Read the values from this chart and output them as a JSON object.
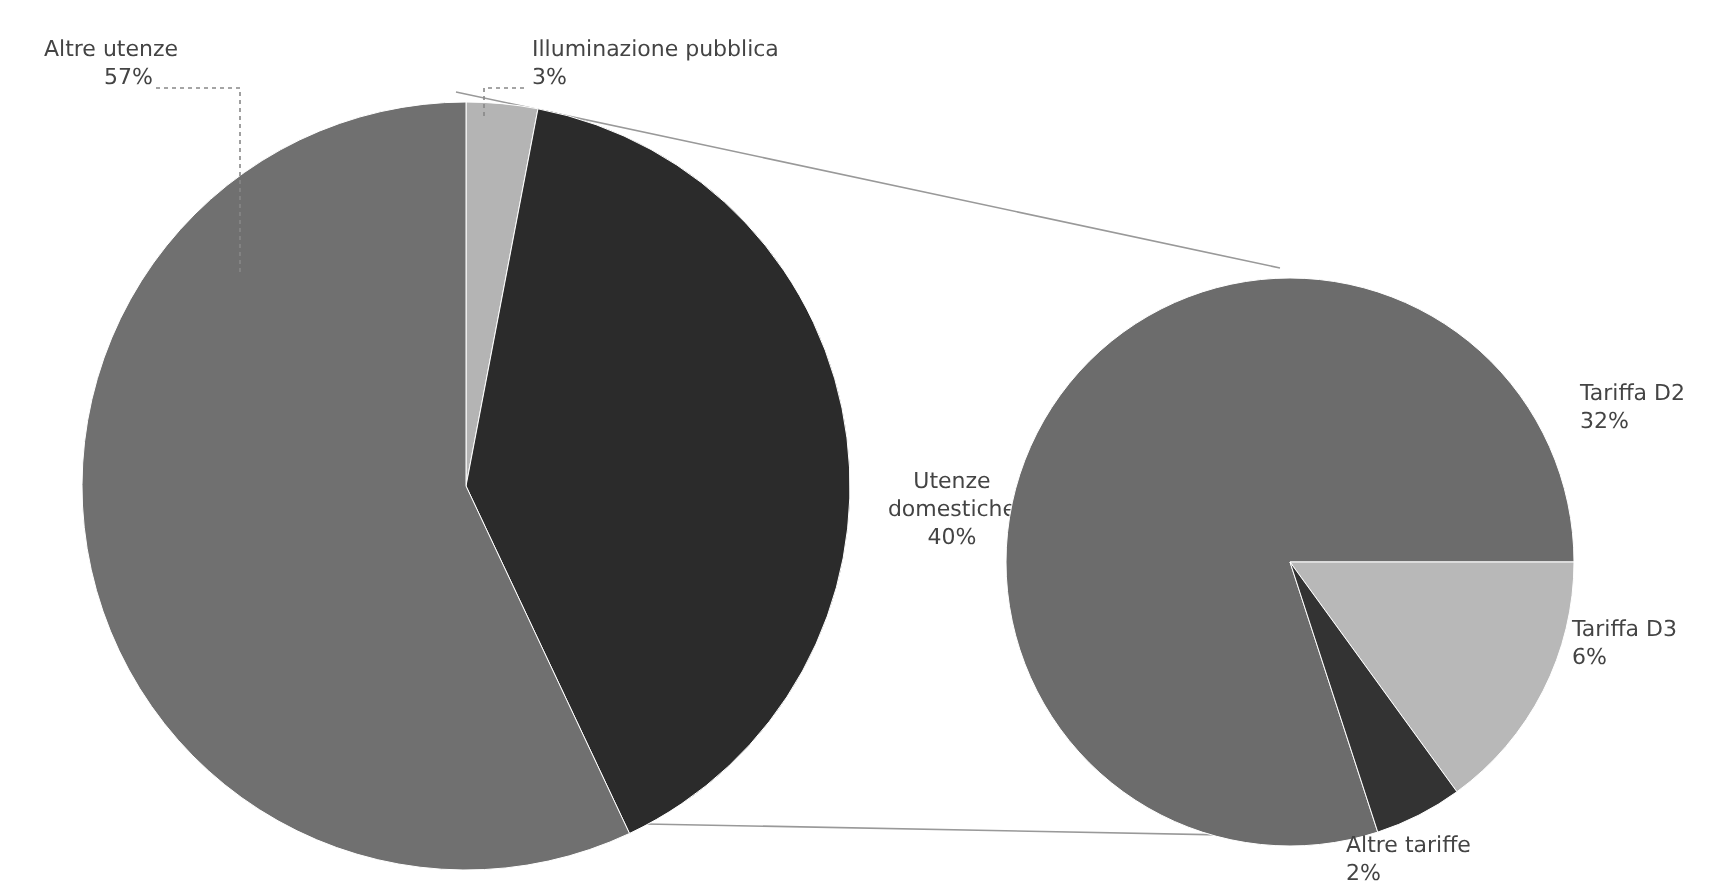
{
  "chart_data": [
    {
      "type": "pie",
      "categories": [
        "Illuminazione pubblica",
        "Utenze domestiche",
        "Altre utenze"
      ],
      "values": [
        3,
        40,
        57
      ],
      "colors": [
        "#b4b4b4",
        "#2b2b2b",
        "#707070"
      ],
      "value_labels": [
        "3%",
        "40%",
        "57%"
      ]
    },
    {
      "type": "pie",
      "categories": [
        "Tariffa D2",
        "Tariffa D3",
        "Altre tariffe"
      ],
      "values": [
        32,
        6,
        2
      ],
      "colors": [
        "#6c6c6c",
        "#b8b8b8",
        "#333333"
      ],
      "value_labels": [
        "32%",
        "6%",
        "2%"
      ]
    }
  ]
}
